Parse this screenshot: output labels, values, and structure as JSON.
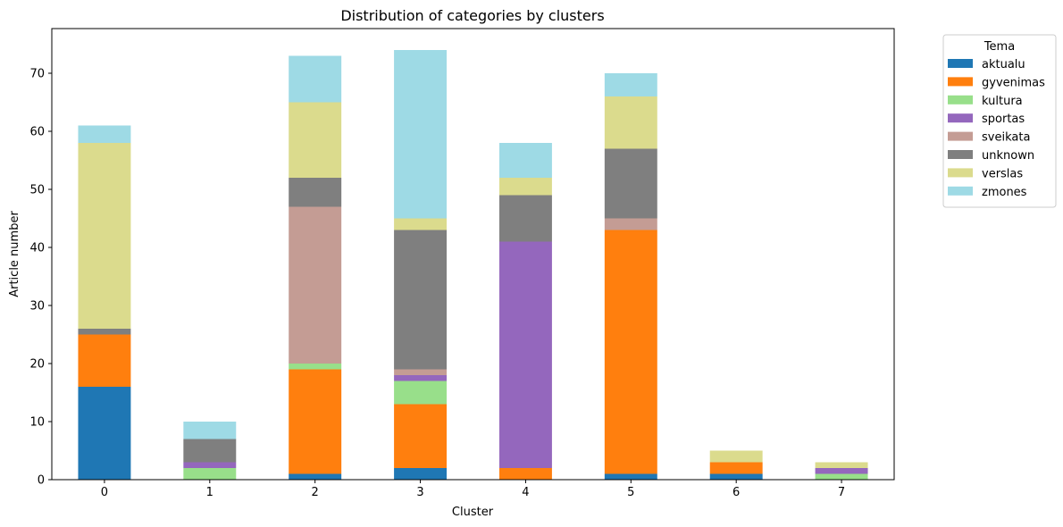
{
  "chart_data": {
    "type": "bar",
    "stacked": true,
    "title": "Distribution of categories by clusters",
    "xlabel": "Cluster",
    "ylabel": "Article number",
    "categories": [
      "0",
      "1",
      "2",
      "3",
      "4",
      "5",
      "6",
      "7"
    ],
    "ylim": [
      0,
      78
    ],
    "yticks": [
      "0",
      "10",
      "20",
      "30",
      "40",
      "50",
      "60",
      "70"
    ],
    "grid": false,
    "legend": {
      "title": "Tema",
      "placement": "outside-upper-right"
    },
    "series": [
      {
        "name": "aktualu",
        "color": "#1f77b4",
        "values": [
          16,
          0,
          1,
          2,
          0,
          1,
          1,
          0
        ]
      },
      {
        "name": "gyvenimas",
        "color": "#ff7f0e",
        "values": [
          9,
          0,
          18,
          11,
          2,
          42,
          2,
          0
        ]
      },
      {
        "name": "kultura",
        "color": "#98df8a",
        "values": [
          0,
          2,
          1,
          4,
          0,
          0,
          0,
          1
        ]
      },
      {
        "name": "sportas",
        "color": "#9467bd",
        "values": [
          0,
          1,
          0,
          1,
          39,
          0,
          0,
          1
        ]
      },
      {
        "name": "sveikata",
        "color": "#c49c94",
        "values": [
          0,
          0,
          27,
          1,
          0,
          2,
          0,
          0
        ]
      },
      {
        "name": "unknown",
        "color": "#7f7f7f",
        "values": [
          1,
          4,
          5,
          24,
          8,
          12,
          0,
          0
        ]
      },
      {
        "name": "verslas",
        "color": "#dbdb8d",
        "values": [
          32,
          0,
          13,
          2,
          3,
          9,
          2,
          1
        ]
      },
      {
        "name": "zmones",
        "color": "#9edae5",
        "values": [
          3,
          3,
          8,
          29,
          6,
          4,
          0,
          0
        ]
      }
    ]
  }
}
